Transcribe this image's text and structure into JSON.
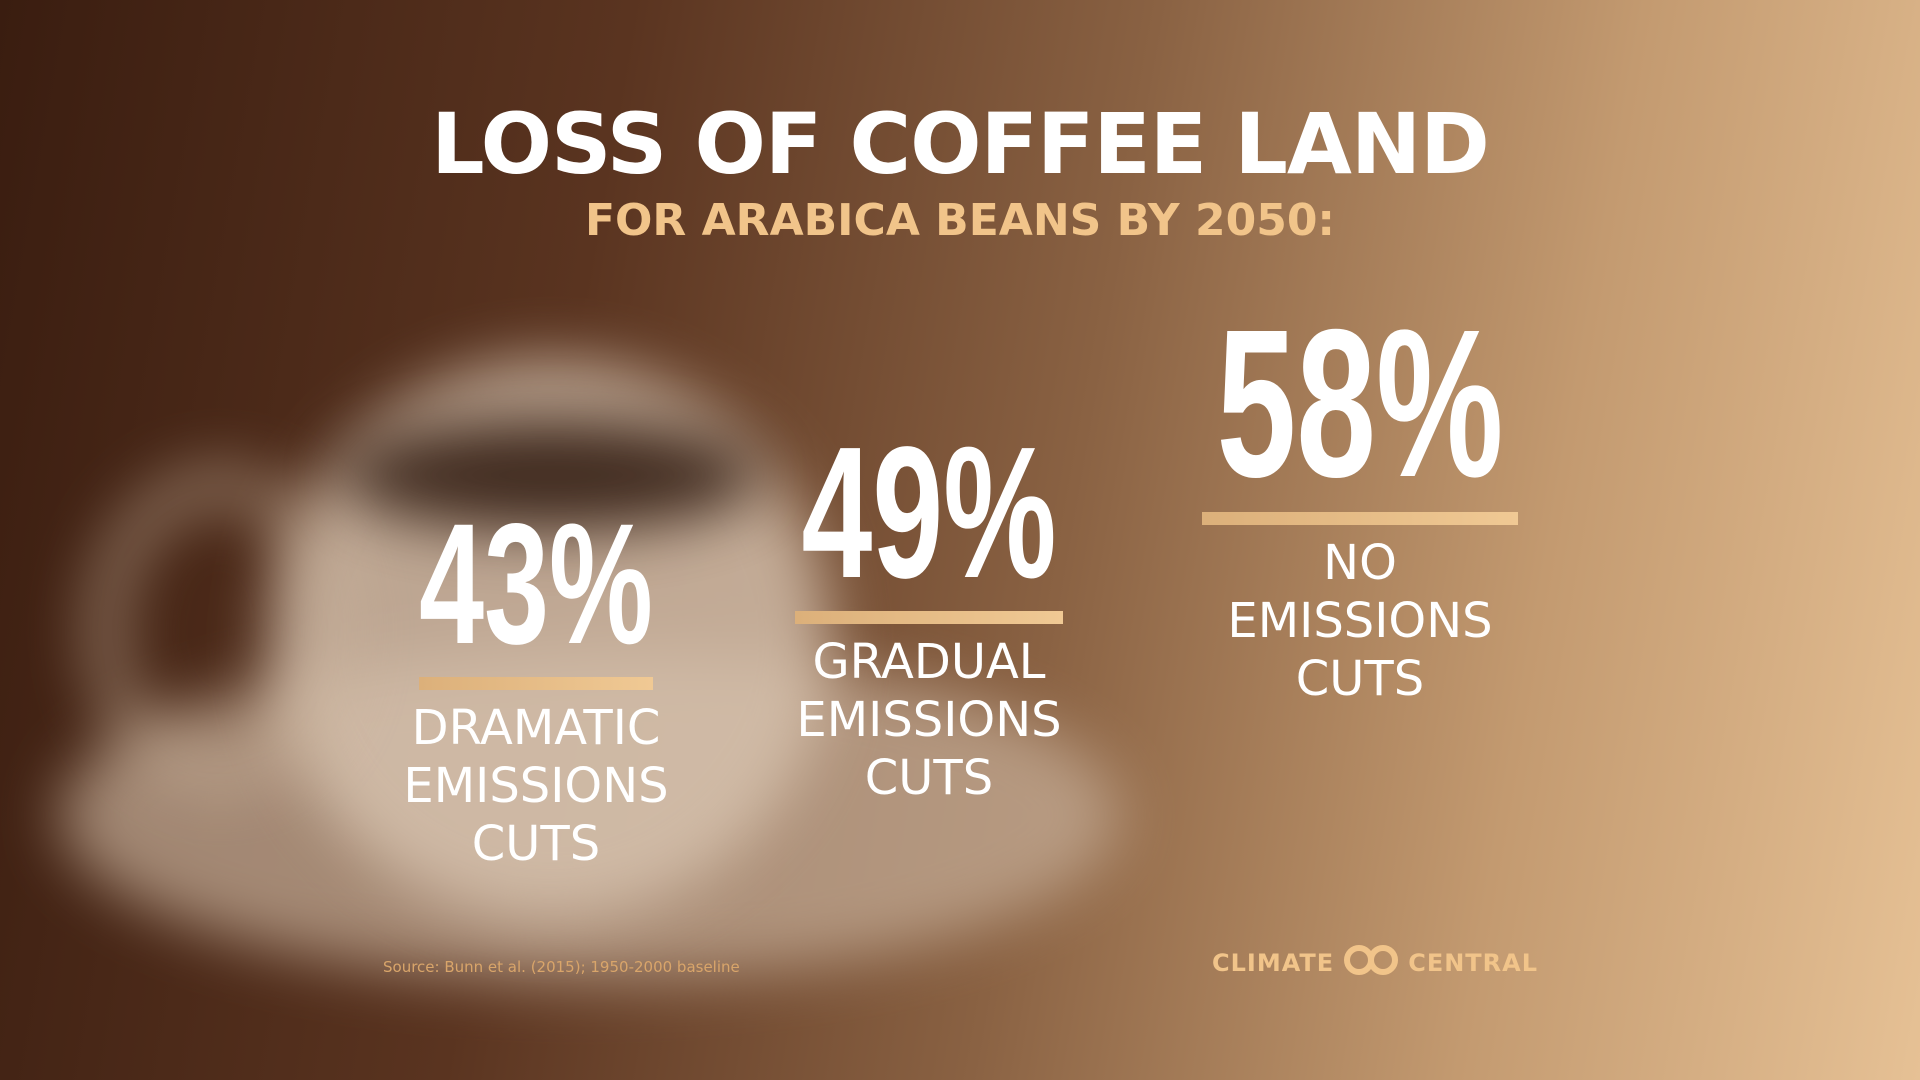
{
  "chart_data": {
    "type": "bar",
    "title": "LOSS OF COFFEE LAND",
    "subtitle": "FOR ARABICA BEANS BY 2050:",
    "categories": [
      "DRAMATIC EMISSIONS CUTS",
      "GRADUAL EMISSIONS CUTS",
      "NO EMISSIONS CUTS"
    ],
    "values": [
      43,
      49,
      58
    ],
    "value_labels": [
      "43%",
      "49%",
      "58%"
    ],
    "color": "#dcb07a",
    "source": "Source: Bunn et al. (2015); 1950-2000 baseline",
    "logo": {
      "left": "CLIMATE",
      "right": "CENTRAL"
    }
  }
}
